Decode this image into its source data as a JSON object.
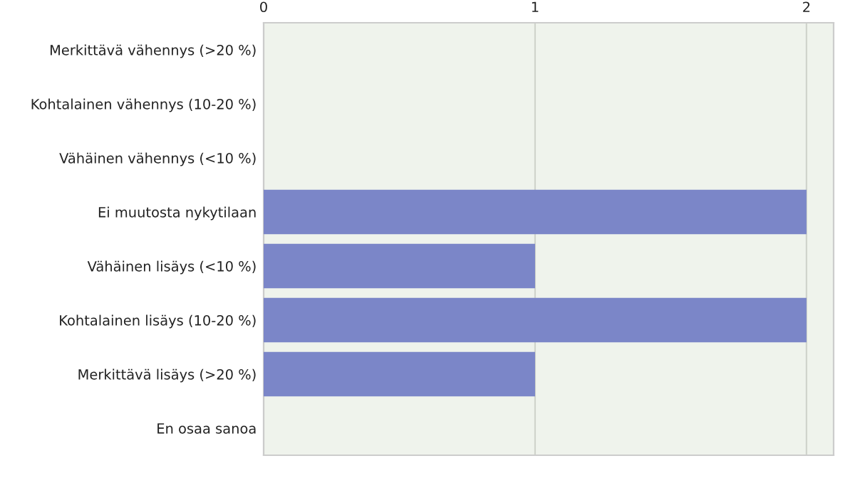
{
  "chart_data": {
    "type": "bar",
    "orientation": "horizontal",
    "categories": [
      "Merkittävä vähennys (>20 %)",
      "Kohtalainen vähennys (10-20 %)",
      "Vähäinen vähennys (<10 %)",
      "Ei muutosta nykytilaan",
      "Vähäinen lisäys (<10 %)",
      "Kohtalainen lisäys (10-20 %)",
      "Merkittävä lisäys (>20 %)",
      "En osaa sanoa"
    ],
    "values": [
      0,
      0,
      0,
      2,
      1,
      2,
      1,
      0
    ],
    "color": "#7b86c8",
    "xlim": [
      0,
      2.1
    ],
    "xticks": [
      0,
      1,
      2
    ],
    "grid": "x",
    "legend": false
  }
}
